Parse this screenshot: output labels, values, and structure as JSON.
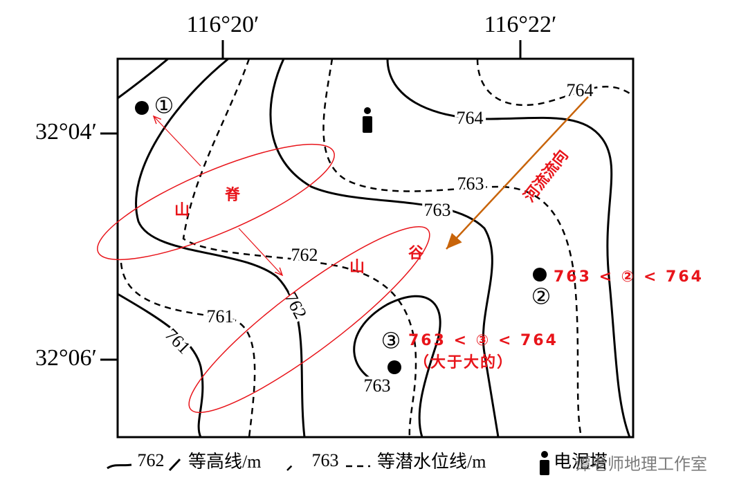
{
  "axes": {
    "top": [
      "116°20′",
      "116°22′"
    ],
    "left": [
      "32°04′",
      "32°06′"
    ]
  },
  "contour_labels": [
    "764",
    "764",
    "763",
    "763",
    "762",
    "762",
    "761",
    "761",
    "763"
  ],
  "points": [
    "①",
    "②",
    "③"
  ],
  "annotations": {
    "ridge": [
      "山",
      "脊"
    ],
    "valley": [
      "山",
      "谷"
    ],
    "river": "河流流向",
    "point2": "763 < ② < 764",
    "point3": "763 < ③ < 764",
    "point3_note": "（大于大的）"
  },
  "legend": {
    "contour_value": "762",
    "contour": "等高线/m",
    "water_value": "763",
    "water": "等潜水位线/m",
    "tower": "电泥塔"
  },
  "watermark": "谭老师地理工作室"
}
